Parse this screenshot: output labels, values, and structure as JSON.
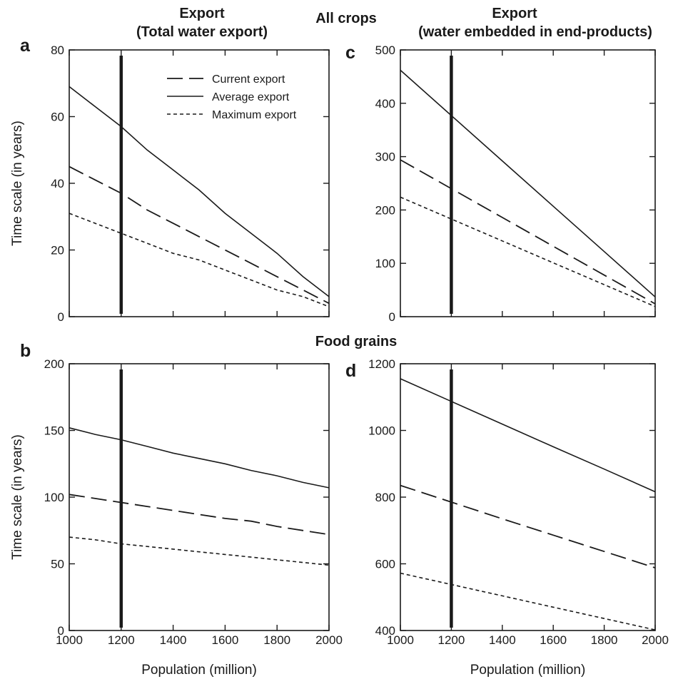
{
  "headings": {
    "left_export": [
      "Export",
      "(Total water  export)"
    ],
    "right_export": [
      "Export",
      "(water embedded in end-products)"
    ],
    "all_crops": "All crops",
    "food_grains": "Food grains"
  },
  "legend": {
    "items": [
      {
        "label": "Current export",
        "style": "long-dash"
      },
      {
        "label": "Average export",
        "style": "solid"
      },
      {
        "label": "Maximum export",
        "style": "short-dash"
      }
    ]
  },
  "chart_data": [
    {
      "panel": "a",
      "type": "line",
      "xlabel": "",
      "ylabel": "Time scale (in years)",
      "xlim": [
        1000,
        2000
      ],
      "ylim": [
        0,
        80
      ],
      "xticks": [
        1000,
        1200,
        1400,
        1600,
        1800,
        2000
      ],
      "yticks": [
        0,
        20,
        40,
        60,
        80
      ],
      "x_tick_labels": false,
      "vertical_marker_x": 1200,
      "x": [
        1000,
        1100,
        1200,
        1300,
        1400,
        1500,
        1600,
        1700,
        1800,
        1900,
        2000
      ],
      "series": [
        {
          "name": "Current export",
          "style": "long-dash",
          "values": [
            45,
            41,
            37,
            32,
            28,
            24,
            20,
            16,
            12,
            8,
            4
          ]
        },
        {
          "name": "Average export",
          "style": "solid",
          "values": [
            69,
            63,
            57,
            50,
            44,
            38,
            31,
            25,
            19,
            12,
            6
          ]
        },
        {
          "name": "Maximum export",
          "style": "short-dash",
          "values": [
            31,
            28,
            25,
            22,
            19,
            17,
            14,
            11,
            8,
            6,
            3
          ]
        }
      ]
    },
    {
      "panel": "b",
      "type": "line",
      "xlabel": "Population (million)",
      "ylabel": "Time scale (in years)",
      "xlim": [
        1000,
        2000
      ],
      "ylim": [
        0,
        200
      ],
      "xticks": [
        1000,
        1200,
        1400,
        1600,
        1800,
        2000
      ],
      "yticks": [
        0,
        50,
        100,
        150,
        200
      ],
      "x_tick_labels": true,
      "vertical_marker_x": 1200,
      "x": [
        1000,
        1100,
        1200,
        1300,
        1400,
        1500,
        1600,
        1700,
        1800,
        1900,
        2000
      ],
      "series": [
        {
          "name": "Current export",
          "style": "long-dash",
          "values": [
            102,
            99,
            96,
            93,
            90,
            87,
            84,
            82,
            78,
            75,
            72
          ]
        },
        {
          "name": "Average export",
          "style": "solid",
          "values": [
            152,
            147,
            143,
            138,
            133,
            129,
            125,
            120,
            116,
            111,
            107
          ]
        },
        {
          "name": "Maximum export",
          "style": "short-dash",
          "values": [
            70,
            68,
            65,
            63,
            61,
            59,
            57,
            55,
            53,
            51,
            49
          ]
        }
      ]
    },
    {
      "panel": "c",
      "type": "line",
      "xlabel": "",
      "ylabel": "",
      "xlim": [
        1000,
        2000
      ],
      "ylim": [
        0,
        500
      ],
      "xticks": [
        1000,
        1200,
        1400,
        1600,
        1800,
        2000
      ],
      "yticks": [
        0,
        100,
        200,
        300,
        400,
        500
      ],
      "x_tick_labels": false,
      "vertical_marker_x": 1200,
      "x": [
        1000,
        1200,
        1400,
        1600,
        1800,
        2000
      ],
      "series": [
        {
          "name": "Current export",
          "style": "long-dash",
          "values": [
            294,
            240,
            186,
            132,
            78,
            24
          ]
        },
        {
          "name": "Average export",
          "style": "solid",
          "values": [
            462,
            377,
            292,
            207,
            122,
            37
          ]
        },
        {
          "name": "Maximum export",
          "style": "short-dash",
          "values": [
            224,
            183,
            142,
            101,
            60,
            19
          ]
        }
      ]
    },
    {
      "panel": "d",
      "type": "line",
      "xlabel": "Population (million)",
      "ylabel": "",
      "xlim": [
        1000,
        2000
      ],
      "ylim": [
        400,
        1200
      ],
      "xticks": [
        1000,
        1200,
        1400,
        1600,
        1800,
        2000
      ],
      "yticks": [
        400,
        600,
        800,
        1000,
        1200
      ],
      "x_tick_labels": true,
      "vertical_marker_x": 1200,
      "x": [
        1000,
        1200,
        1400,
        1600,
        1800,
        2000
      ],
      "series": [
        {
          "name": "Current export",
          "style": "long-dash",
          "values": [
            835,
            785,
            735,
            686,
            637,
            588
          ]
        },
        {
          "name": "Average export",
          "style": "solid",
          "values": [
            1155,
            1087,
            1019,
            951,
            884,
            816
          ]
        },
        {
          "name": "Maximum export",
          "style": "short-dash",
          "values": [
            572,
            538,
            504,
            470,
            436,
            402
          ]
        }
      ]
    }
  ]
}
